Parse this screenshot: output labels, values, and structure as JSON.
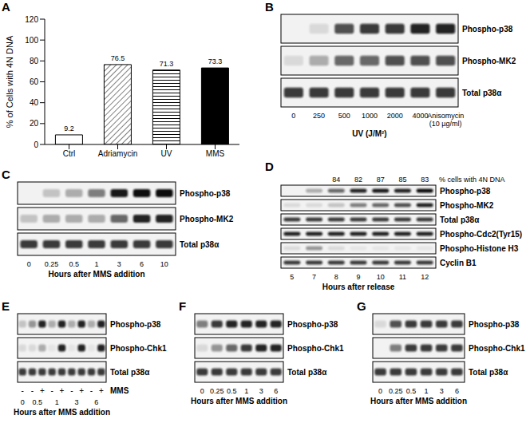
{
  "chart_data": {
    "type": "bar",
    "panel": "A",
    "y_label": "% of Cells with 4N DNA",
    "categories": [
      "Ctrl",
      "Adriamycin",
      "UV",
      "MMS"
    ],
    "values": [
      9.2,
      76.5,
      71.3,
      73.3
    ],
    "colors": [
      "#ffffff",
      "#ffffff",
      "#ffffff",
      "#000000"
    ],
    "ylim": [
      0,
      120
    ],
    "yticks": [
      0,
      20,
      40,
      60,
      80,
      100,
      120
    ],
    "data_labels": true,
    "grid": false
  },
  "blots": [
    {
      "panel": "B",
      "lanes": [
        "0",
        "250",
        "500",
        "1000",
        "2000",
        "4000",
        "Anisomycin (10 µg/ml)"
      ],
      "caption": "UV (J/M²)",
      "rows": [
        {
          "name": "Phospho-p38",
          "bands": [
            0,
            0.1,
            0.7,
            0.8,
            0.8,
            0.9,
            0.9
          ]
        },
        {
          "name": "Phospho-MK2",
          "bands": [
            0.1,
            0.3,
            0.6,
            0.6,
            0.7,
            0.7,
            0.7
          ]
        },
        {
          "name": "Total p38α",
          "bands": [
            0.8,
            0.8,
            0.8,
            0.8,
            0.8,
            0.8,
            0.8
          ]
        }
      ]
    },
    {
      "panel": "C",
      "lanes": [
        "0",
        "0.25",
        "0.5",
        "1",
        "3",
        "6",
        "10"
      ],
      "caption": "Hours after MMS addition",
      "rows": [
        {
          "name": "Phospho-p38",
          "bands": [
            0,
            0.2,
            0.3,
            0.5,
            0.95,
            1,
            1
          ]
        },
        {
          "name": "Phospho-MK2",
          "bands": [
            0.2,
            0.3,
            0.3,
            0.3,
            0.6,
            0.9,
            0.9
          ]
        },
        {
          "name": "Total p38α",
          "bands": [
            0.8,
            0.8,
            0.8,
            0.8,
            0.8,
            0.8,
            0.8
          ]
        }
      ]
    },
    {
      "panel": "D",
      "header": {
        "label": "% cells with 4N DNA",
        "values": [
          null,
          null,
          "84",
          "82",
          "87",
          "85",
          "83"
        ]
      },
      "lanes": [
        "5",
        "7",
        "8",
        "9",
        "10",
        "11",
        "12"
      ],
      "caption": "Hours after release",
      "rows": [
        {
          "name": "Phospho-p38",
          "bands": [
            0,
            0.3,
            0.6,
            0.9,
            0.95,
            0.9,
            1
          ]
        },
        {
          "name": "Phospho-MK2",
          "bands": [
            0.1,
            0.1,
            0.2,
            0.5,
            0.6,
            0.7,
            0.9
          ]
        },
        {
          "name": "Total p38α",
          "bands": [
            0.8,
            0.8,
            0.8,
            0.8,
            0.8,
            0.8,
            0.8
          ]
        },
        {
          "name": "Phospho-Cdc2(Tyr15)",
          "bands": [
            0.9,
            0.9,
            0.9,
            0.9,
            0.9,
            0.9,
            0.9
          ]
        },
        {
          "name": "Phospho-Histone H3",
          "bands": [
            0.1,
            0.4,
            0.1,
            0.05,
            0.05,
            0.05,
            0.05
          ]
        },
        {
          "name": "Cyclin B1",
          "bands": [
            0.8,
            0.8,
            0.8,
            0.8,
            0.8,
            0.8,
            0.8
          ]
        }
      ]
    },
    {
      "panel": "E",
      "sign_row": {
        "name": "MMS",
        "values": [
          "-",
          "-",
          "+",
          "-",
          "+",
          "-",
          "+",
          "-",
          "+"
        ]
      },
      "lanes": [
        "0",
        "0.5",
        null,
        "1",
        null,
        "3",
        null,
        "6",
        null
      ],
      "caption": "Hours after MMS addition",
      "rows": [
        {
          "name": "Phospho-p38",
          "bands": [
            0.2,
            0.4,
            0.9,
            0.3,
            0.9,
            0.3,
            0.9,
            0.3,
            0.9
          ]
        },
        {
          "name": "Phospho-Chk1",
          "bands": [
            0.1,
            0.1,
            0.3,
            0.05,
            0.9,
            0.05,
            0.9,
            0.05,
            0.9
          ]
        },
        {
          "name": "Total p38α",
          "bands": [
            0.8,
            0.8,
            0.8,
            0.8,
            0.8,
            0.8,
            0.8,
            0.8,
            0.8
          ]
        }
      ]
    },
    {
      "panel": "F",
      "lanes": [
        "0",
        "0.25",
        "0.5",
        "1",
        "3",
        "6"
      ],
      "caption": "Hours after MMS addition",
      "rows": [
        {
          "name": "Phospho-p38",
          "bands": [
            0.5,
            0.8,
            0.9,
            0.9,
            0.9,
            0.9
          ]
        },
        {
          "name": "Phospho-Chk1",
          "bands": [
            0.1,
            0.4,
            0.6,
            0.8,
            0.9,
            0.9
          ]
        },
        {
          "name": "Total p38α",
          "bands": [
            0.8,
            0.8,
            0.8,
            0.8,
            0.8,
            0.8
          ]
        }
      ]
    },
    {
      "panel": "G",
      "lanes": [
        "0",
        "0.25",
        "0.5",
        "1",
        "3",
        "6"
      ],
      "caption": "Hours after MMS addition",
      "rows": [
        {
          "name": "Phospho-p38",
          "bands": [
            0.1,
            0.7,
            0.8,
            0.8,
            0.8,
            0.8
          ]
        },
        {
          "name": "Phospho-Chk1",
          "bands": [
            0,
            0.5,
            0.8,
            0.8,
            0.8,
            0.8
          ]
        },
        {
          "name": "Total p38α",
          "bands": [
            0.8,
            0.8,
            0.8,
            0.8,
            0.8,
            0.8
          ]
        }
      ]
    }
  ]
}
